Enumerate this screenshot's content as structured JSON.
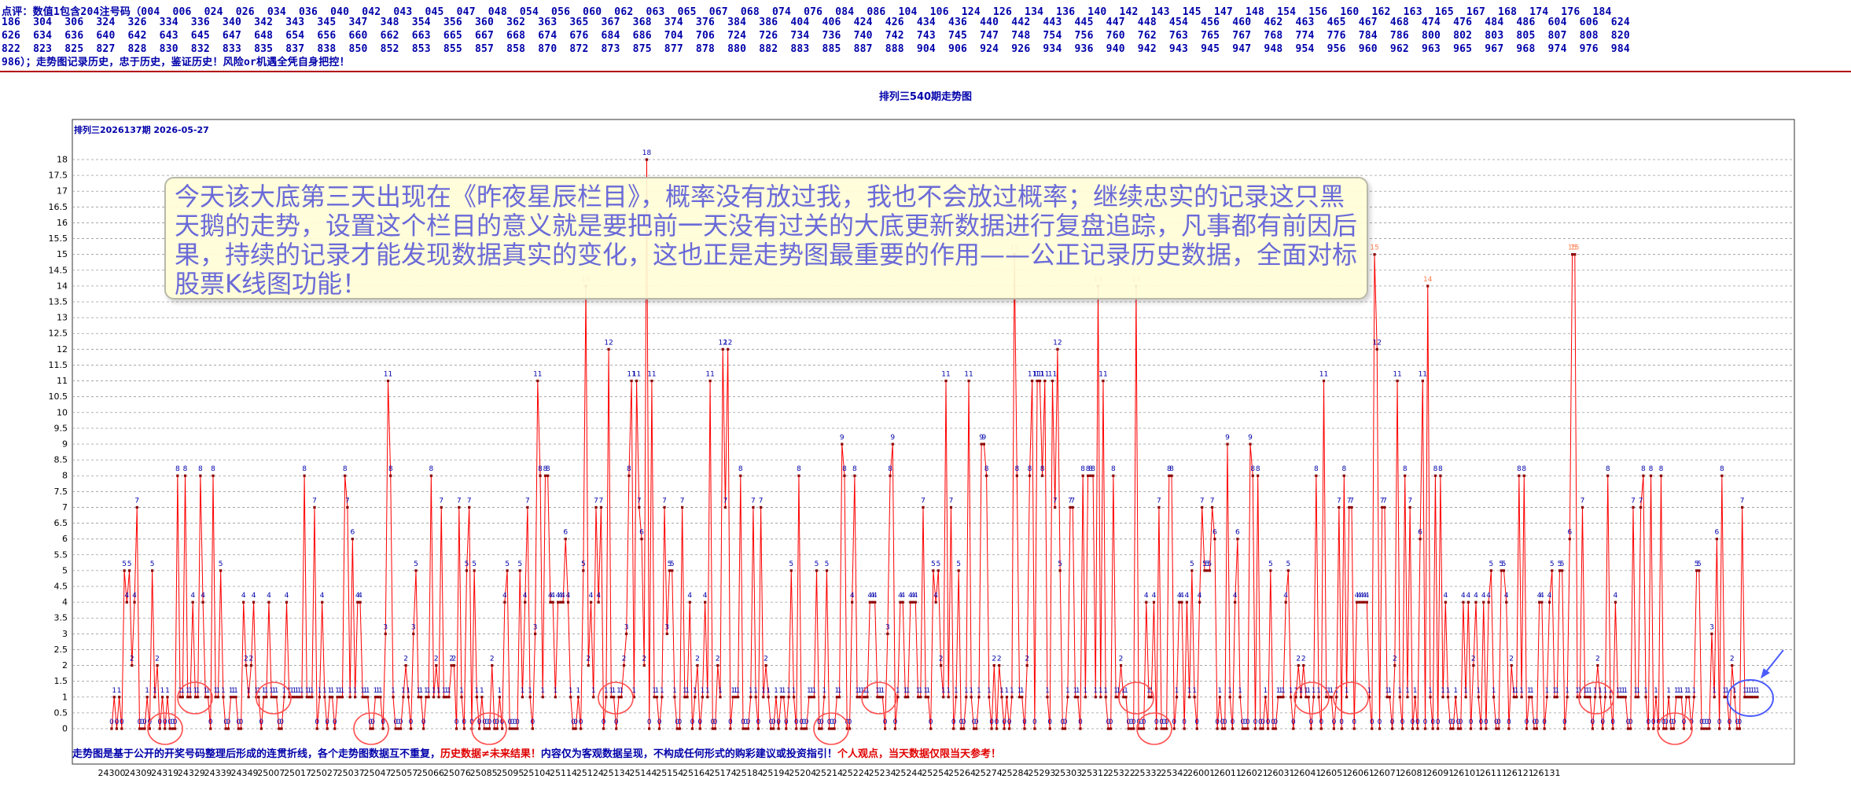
{
  "header": {
    "lines": [
      "点评：数值1包含204注号码（004  006  024  026  034  036  040  042  043  045  047  048  054  056  060  062  063  065  067  068  074  076  084  086  104  106  124  126  134  136  140  142  143  145  147  148  154  156  160  162  163  165  167  168  174  176  184",
      "186  304  306  324  326  334  336  340  342  343  345  347  348  354  356  360  362  363  365  367  368  374  376  384  386  404  406  424  426  434  436  440  442  443  445  447  448  454  456  460  462  463  465  467  468  474  476  484  486  604  606  624",
      "626  634  636  640  642  643  645  647  648  654  656  660  662  663  665  667  668  674  676  684  686  704  706  724  726  734  736  740  742  743  745  747  748  754  756  760  762  763  765  767  768  774  776  784  786  800  802  803  805  807  808  820",
      "822  823  825  827  828  830  832  833  835  837  838  850  852  853  855  857  858  870  872  873  875  877  878  880  882  883  885  887  888  904  906  924  926  934  936  940  942  943  945  947  948  954  956  960  962  963  965  967  968  974  976  984",
      "986）；走势图记录历史，忠于历史，鉴证历史！风险or机遇全凭自身把控！"
    ]
  },
  "page_title": "排列三540期走势图",
  "chart_subtitle": "排列三2026137期  2026-05-27",
  "annotation": "今天该大底第三天出现在《昨夜星辰栏目》，概率没有放过我，我也不会放过概率；继续忠实的记录这只黑天鹅的走势，设置这个栏目的意义就是要把前一天没有过关的大底更新数据进行复盘追踪，凡事都有前因后果，持续的记录才能发现数据真实的变化，这也正是走势图最重要的作用——公正记录历史数据，全面对标股票K线图功能！",
  "footer": {
    "part1": "走势图是基于公开的开奖号码整理后形成的连贯折线，各个走势图数据互不重复，",
    "part2": "历史数据≠未来结果！",
    "part3": "内容仅为客观数据呈现，不构成任何形式的购彩建议或投资指引！",
    "part4": "个人观点，当天数据仅限当天参考！"
  },
  "colors": {
    "line": "#ff0000",
    "marker": "#8b0000",
    "value_label": "#0000aa",
    "highlight_label": "#ff7f50",
    "circle_red": "#ff5050",
    "circle_blue": "#4a5cff",
    "grid": "#999999"
  },
  "chart_data": {
    "type": "line",
    "title": "排列三540期走势图",
    "subtitle": "排列三2026137期  2026-05-27",
    "xlabel": "",
    "ylabel": "",
    "ylim": [
      0,
      18.5
    ],
    "ytick_step": 0.5,
    "grid": true,
    "x_tick_labels": [
      "24300",
      "24309",
      "24319",
      "24329",
      "24339",
      "24349",
      "25007",
      "25017",
      "25027",
      "25037",
      "25047",
      "25057",
      "25066",
      "25076",
      "25085",
      "25095",
      "25104",
      "25114",
      "25124",
      "25134",
      "25144",
      "25154",
      "25164",
      "25174",
      "25184",
      "25194",
      "25204",
      "25214",
      "25224",
      "25234",
      "25244",
      "25254",
      "25264",
      "25274",
      "25284",
      "25293",
      "25303",
      "25312",
      "25322",
      "25332",
      "25342",
      "26001",
      "26011",
      "26021",
      "26031",
      "26041",
      "26051",
      "26061",
      "26071",
      "26081",
      "26091",
      "26101",
      "26111",
      "26121",
      "26131"
    ],
    "series": [
      {
        "values": [
          0,
          1,
          0,
          1,
          0,
          5,
          4,
          5,
          2,
          4,
          7,
          0,
          0,
          0,
          1,
          0,
          5,
          1,
          2,
          0,
          1,
          0,
          1,
          0,
          0,
          0,
          8,
          1,
          1,
          8,
          1,
          1,
          4,
          1,
          1,
          8,
          4,
          1,
          1,
          0,
          8,
          1,
          1,
          5,
          1,
          0,
          0,
          1,
          1,
          1,
          0,
          0,
          4,
          2,
          1,
          2,
          4,
          1,
          1,
          0,
          1,
          1,
          4,
          1,
          1,
          1,
          0,
          0,
          1,
          4,
          1,
          1,
          1,
          1,
          1,
          1,
          8,
          1,
          1,
          1,
          7,
          0,
          1,
          4,
          1,
          0,
          1,
          1,
          0,
          1,
          1,
          1,
          8,
          7,
          1,
          6,
          1,
          4,
          4,
          1,
          1,
          1,
          0,
          0,
          1,
          1,
          1,
          0,
          3,
          11,
          8,
          1,
          0,
          0,
          0,
          1,
          2,
          1,
          0,
          3,
          5,
          1,
          1,
          0,
          1,
          1,
          8,
          1,
          2,
          1,
          7,
          1,
          1,
          1,
          2,
          2,
          0,
          7,
          1,
          0,
          5,
          7,
          0,
          5,
          1,
          0,
          1,
          0,
          0,
          0,
          2,
          0,
          0,
          1,
          0,
          4,
          5,
          0,
          0,
          0,
          0,
          5,
          1,
          4,
          7,
          1,
          0,
          3,
          11,
          8,
          1,
          8,
          8,
          4,
          4,
          1,
          4,
          4,
          4,
          6,
          4,
          1,
          0,
          0,
          1,
          0,
          5,
          14,
          2,
          4,
          1,
          7,
          4,
          7,
          0,
          1,
          12,
          1,
          1,
          0,
          1,
          1,
          2,
          3,
          8,
          11,
          1,
          11,
          7,
          6,
          2,
          18,
          0,
          11,
          1,
          1,
          0,
          1,
          7,
          3,
          5,
          5,
          1,
          0,
          0,
          7,
          1,
          1,
          4,
          0,
          1,
          2,
          0,
          1,
          4,
          1,
          11,
          0,
          0,
          2,
          1,
          12,
          7,
          12,
          0,
          1,
          1,
          1,
          8,
          0,
          0,
          0,
          1,
          7,
          1,
          0,
          7,
          1,
          2,
          1,
          0,
          0,
          1,
          0,
          1,
          1,
          0,
          1,
          5,
          1,
          0,
          8,
          0,
          0,
          0,
          1,
          1,
          1,
          5,
          0,
          0,
          1,
          5,
          0,
          0,
          0,
          1,
          1,
          9,
          8,
          0,
          0,
          4,
          8,
          1,
          1,
          1,
          1,
          1,
          4,
          4,
          4,
          1,
          1,
          1,
          0,
          3,
          8,
          9,
          0,
          1,
          4,
          4,
          1,
          1,
          4,
          4,
          4,
          1,
          1,
          7,
          1,
          1,
          0,
          5,
          4,
          5,
          2,
          1,
          11,
          1,
          7,
          0,
          1,
          5,
          0,
          0,
          1,
          11,
          1,
          0,
          0,
          1,
          9,
          9,
          8,
          1,
          0,
          2,
          0,
          2,
          1,
          0,
          1,
          0,
          1,
          15,
          8,
          1,
          1,
          0,
          2,
          8,
          11,
          0,
          11,
          11,
          8,
          11,
          1,
          0,
          11,
          7,
          12,
          5,
          0,
          0,
          1,
          7,
          7,
          1,
          1,
          0,
          8,
          1,
          8,
          8,
          8,
          1,
          14,
          1,
          11,
          1,
          0,
          0,
          8,
          1,
          1,
          2,
          1,
          1,
          0,
          0,
          0,
          14,
          0,
          0,
          0,
          4,
          1,
          1,
          4,
          0,
          7,
          0,
          0,
          0,
          8,
          8,
          0,
          1,
          4,
          4,
          0,
          4,
          1,
          5,
          1,
          0,
          4,
          7,
          5,
          5,
          5,
          7,
          6,
          0,
          1,
          0,
          0,
          9,
          1,
          0,
          4,
          6,
          1,
          0,
          0,
          0,
          9,
          8,
          0,
          8,
          0,
          0,
          1,
          0,
          5,
          0,
          0,
          1,
          1,
          1,
          4,
          5,
          1,
          0,
          1,
          2,
          1,
          2,
          1,
          1,
          0,
          1,
          8,
          1,
          0,
          11,
          1,
          1,
          1,
          0,
          1,
          7,
          0,
          8,
          1,
          7,
          7,
          0,
          4,
          4,
          4,
          4,
          4,
          1,
          0,
          15,
          12,
          0,
          7,
          7,
          1,
          1,
          0,
          2,
          11,
          1,
          0,
          8,
          1,
          7,
          0,
          1,
          0,
          6,
          11,
          0,
          14,
          1,
          0,
          8,
          0,
          8,
          1,
          4,
          1,
          0,
          0,
          1,
          0,
          0,
          4,
          1,
          4,
          0,
          2,
          4,
          1,
          0,
          4,
          0,
          4,
          5,
          1,
          0,
          0,
          5,
          5,
          4,
          0,
          2,
          1,
          1,
          8,
          1,
          8,
          0,
          1,
          1,
          0,
          0,
          4,
          4,
          0,
          1,
          4,
          5,
          1,
          1,
          5,
          5,
          0,
          1,
          6,
          15,
          15,
          1,
          1,
          7,
          1,
          1,
          1,
          0,
          1,
          2,
          1,
          0,
          1,
          8,
          1,
          0,
          4,
          1,
          1,
          1,
          1,
          0,
          0,
          7,
          1,
          1,
          7,
          8,
          1,
          0,
          8,
          0,
          1,
          0,
          8,
          0,
          0,
          1,
          0,
          0,
          1,
          1,
          1,
          0,
          1,
          1,
          0,
          1,
          5,
          5,
          0,
          0,
          0,
          0,
          3,
          1,
          6,
          0,
          8,
          1,
          1,
          0,
          2,
          1,
          0,
          0,
          7,
          1,
          1,
          1,
          1,
          1,
          1
        ]
      }
    ]
  }
}
